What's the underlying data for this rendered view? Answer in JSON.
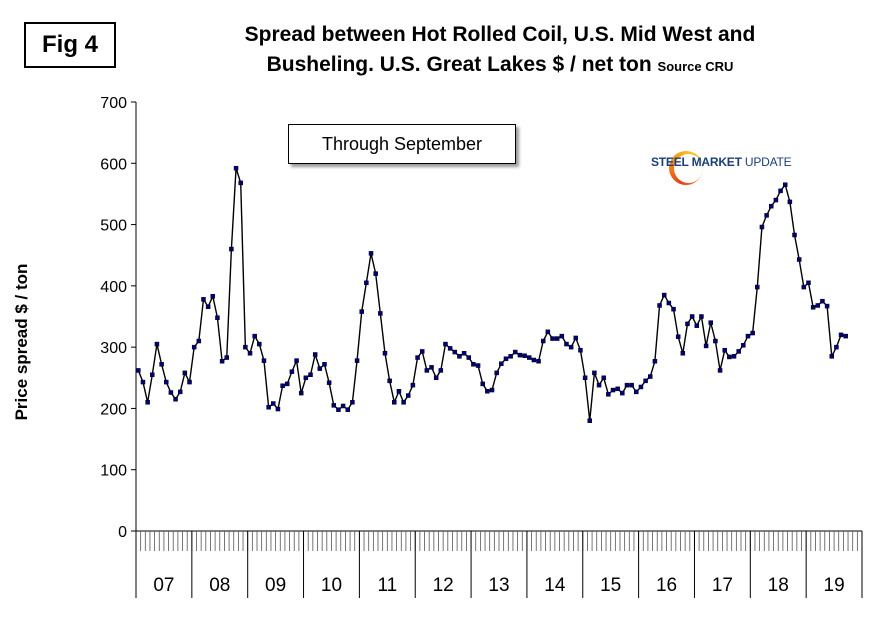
{
  "figure_label": "Fig 4",
  "chart_data": {
    "type": "line",
    "title_line1": "Spread between Hot Rolled Coil, U.S. Mid West and",
    "title_line2": "Busheling. U.S. Great Lakes  $ / net ton",
    "title_source": "Source CRU",
    "annotation": "Through September",
    "logo_text_bold": "STEEL MARKET",
    "logo_text_light": "UPDATE",
    "ylabel": "Price spread $ / ton",
    "xlabel": "",
    "ylim": [
      0,
      700
    ],
    "y_ticks": [
      "0",
      "100",
      "200",
      "300",
      "400",
      "500",
      "600",
      "700"
    ],
    "year_labels": [
      "07",
      "08",
      "09",
      "10",
      "11",
      "12",
      "13",
      "14",
      "15",
      "16",
      "17",
      "18",
      "19"
    ],
    "series": [
      {
        "name": "Spread",
        "color": "#000080",
        "values": [
          262,
          243,
          210,
          255,
          305,
          272,
          243,
          226,
          215,
          227,
          258,
          243,
          300,
          310,
          378,
          366,
          383,
          348,
          277,
          283,
          460,
          592,
          568,
          300,
          290,
          318,
          305,
          278,
          202,
          208,
          199,
          237,
          240,
          260,
          278,
          225,
          250,
          255,
          288,
          265,
          272,
          242,
          205,
          198,
          204,
          198,
          210,
          278,
          358,
          405,
          453,
          420,
          355,
          290,
          245,
          210,
          228,
          210,
          221,
          238,
          283,
          293,
          262,
          267,
          250,
          262,
          305,
          298,
          292,
          285,
          290,
          283,
          272,
          270,
          240,
          228,
          230,
          258,
          273,
          281,
          285,
          292,
          287,
          286,
          283,
          279,
          277,
          310,
          325,
          314,
          314,
          318,
          305,
          300,
          315,
          295,
          250,
          180,
          258,
          238,
          250,
          223,
          230,
          232,
          225,
          238,
          238,
          227,
          235,
          245,
          252,
          277,
          368,
          385,
          372,
          362,
          317,
          290,
          338,
          350,
          335,
          350,
          302,
          340,
          310,
          262,
          295,
          284,
          285,
          293,
          303,
          318,
          323,
          398,
          496,
          515,
          530,
          540,
          555,
          565,
          537,
          483,
          443,
          398,
          405,
          365,
          368,
          375,
          367,
          285,
          300,
          320,
          318
        ]
      }
    ]
  }
}
